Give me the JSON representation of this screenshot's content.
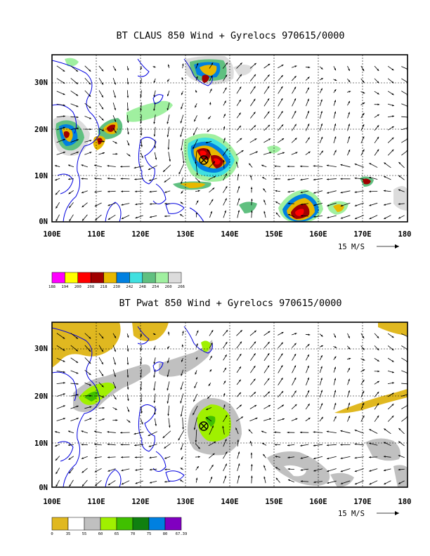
{
  "maps": [
    {
      "title": "BT CLAUS 850 Wind + Gyrelocs 970615/0000",
      "lon_ticks": [
        "100E",
        "110E",
        "120E",
        "130E",
        "140E",
        "150E",
        "160E",
        "170E",
        "180"
      ],
      "lat_ticks": [
        "0N",
        "10N",
        "20N",
        "30N"
      ],
      "extent": {
        "lon": [
          100,
          180
        ],
        "lat": [
          0,
          35
        ]
      },
      "vector_reference": "15 M/S",
      "gyre_location": {
        "lon": 134.5,
        "lat": 13.0,
        "symbol": "circled-x"
      },
      "legend": {
        "labels": [
          "188",
          "194",
          "200",
          "208",
          "218",
          "230",
          "242",
          "248",
          "254",
          "260",
          "266"
        ],
        "colors": [
          "#ff00ff",
          "#ffff00",
          "#ff0000",
          "#a00000",
          "#e8b800",
          "#0080e0",
          "#40e0e0",
          "#60c080",
          "#a0f0a0",
          "#dcdcdc"
        ]
      }
    },
    {
      "title": "BT Pwat 850 Wind + Gyrelocs 970615/0000",
      "lon_ticks": [
        "100E",
        "110E",
        "120E",
        "130E",
        "140E",
        "150E",
        "160E",
        "170E",
        "180"
      ],
      "lat_ticks": [
        "0N",
        "10N",
        "20N",
        "30N"
      ],
      "extent": {
        "lon": [
          100,
          180
        ],
        "lat": [
          0,
          35
        ]
      },
      "vector_reference": "15 M/S",
      "gyre_location": {
        "lon": 134.5,
        "lat": 12.5,
        "symbol": "circled-x"
      },
      "legend": {
        "labels": [
          "0",
          "35",
          "55",
          "60",
          "65",
          "70",
          "75",
          "80",
          "67.39"
        ],
        "colors": [
          "#e0b820",
          "#ffffff",
          "#c0c0c0",
          "#a0f000",
          "#40c000",
          "#108010",
          "#0080e0",
          "#8000c0"
        ]
      }
    }
  ]
}
